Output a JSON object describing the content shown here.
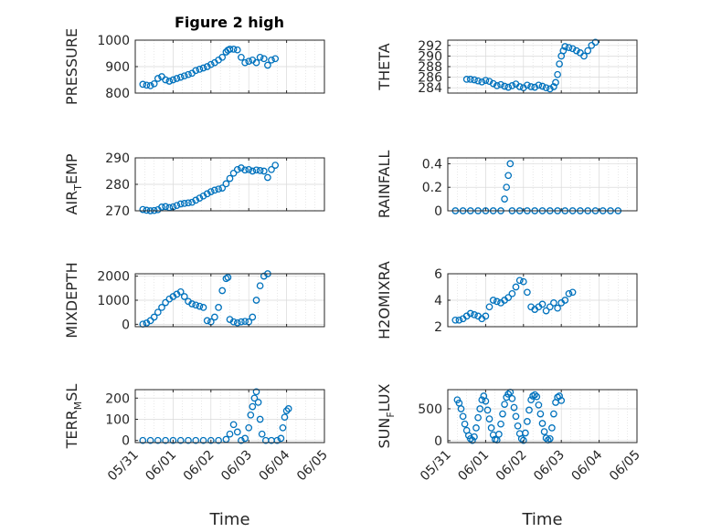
{
  "figure": {
    "title": "Figure 2 high",
    "marker_color": "#0072BD",
    "x_tick_labels": [
      "05/31",
      "06/01",
      "06/02",
      "06/03",
      "06/04",
      "06/05"
    ]
  },
  "chart_data": [
    {
      "type": "scatter",
      "ylabel": "PRESSURE",
      "ylabel_main": "PRESSURE",
      "ylabel_sub": "",
      "ylim": [
        800,
        1000
      ],
      "yticks": [
        800,
        900,
        1000
      ],
      "xlim": [
        0,
        5
      ],
      "xlabel": "",
      "points": [
        [
          0.2,
          833
        ],
        [
          0.3,
          830
        ],
        [
          0.4,
          828
        ],
        [
          0.5,
          835
        ],
        [
          0.6,
          855
        ],
        [
          0.7,
          862
        ],
        [
          0.8,
          850
        ],
        [
          0.9,
          845
        ],
        [
          1.0,
          850
        ],
        [
          1.1,
          855
        ],
        [
          1.2,
          860
        ],
        [
          1.3,
          865
        ],
        [
          1.4,
          870
        ],
        [
          1.5,
          875
        ],
        [
          1.6,
          885
        ],
        [
          1.7,
          890
        ],
        [
          1.8,
          895
        ],
        [
          1.9,
          900
        ],
        [
          2.0,
          908
        ],
        [
          2.1,
          915
        ],
        [
          2.2,
          925
        ],
        [
          2.3,
          935
        ],
        [
          2.4,
          955
        ],
        [
          2.45,
          962
        ],
        [
          2.5,
          966
        ],
        [
          2.6,
          966
        ],
        [
          2.7,
          963
        ],
        [
          2.8,
          935
        ],
        [
          2.9,
          915
        ],
        [
          3.0,
          920
        ],
        [
          3.1,
          925
        ],
        [
          3.2,
          915
        ],
        [
          3.3,
          935
        ],
        [
          3.4,
          930
        ],
        [
          3.5,
          905
        ],
        [
          3.6,
          925
        ],
        [
          3.7,
          930
        ]
      ]
    },
    {
      "type": "scatter",
      "ylabel": "THETA",
      "ylabel_main": "THETA",
      "ylabel_sub": "",
      "ylim": [
        283,
        293
      ],
      "yticks": [
        284,
        286,
        288,
        290,
        292
      ],
      "xlim": [
        0,
        5
      ],
      "xlabel": "",
      "points": [
        [
          0.5,
          285.6
        ],
        [
          0.6,
          285.6
        ],
        [
          0.7,
          285.5
        ],
        [
          0.8,
          285.3
        ],
        [
          0.9,
          285.1
        ],
        [
          1.0,
          285.4
        ],
        [
          1.1,
          285.2
        ],
        [
          1.2,
          284.8
        ],
        [
          1.3,
          284.4
        ],
        [
          1.4,
          284.6
        ],
        [
          1.5,
          284.3
        ],
        [
          1.6,
          284.1
        ],
        [
          1.7,
          284.4
        ],
        [
          1.8,
          284.7
        ],
        [
          1.9,
          284.2
        ],
        [
          2.0,
          284.0
        ],
        [
          2.1,
          284.5
        ],
        [
          2.2,
          284.2
        ],
        [
          2.3,
          284.1
        ],
        [
          2.4,
          284.5
        ],
        [
          2.5,
          284.3
        ],
        [
          2.6,
          284.0
        ],
        [
          2.7,
          283.8
        ],
        [
          2.8,
          284.2
        ],
        [
          2.85,
          285.0
        ],
        [
          2.9,
          286.5
        ],
        [
          2.95,
          288.5
        ],
        [
          3.0,
          290.0
        ],
        [
          3.05,
          291.0
        ],
        [
          3.1,
          291.8
        ],
        [
          3.2,
          291.6
        ],
        [
          3.3,
          291.4
        ],
        [
          3.4,
          291.0
        ],
        [
          3.5,
          290.6
        ],
        [
          3.6,
          290.0
        ],
        [
          3.7,
          291.0
        ],
        [
          3.8,
          292.0
        ],
        [
          3.9,
          292.6
        ]
      ]
    },
    {
      "type": "scatter",
      "ylabel": "AIR_TEMP",
      "ylabel_main": "AIR",
      "ylabel_sub": "T",
      "ylabel_tail": "EMP",
      "ylim": [
        270,
        290
      ],
      "yticks": [
        270,
        280,
        290
      ],
      "xlim": [
        0,
        5
      ],
      "xlabel": "",
      "points": [
        [
          0.2,
          270.5
        ],
        [
          0.3,
          270.2
        ],
        [
          0.4,
          270.0
        ],
        [
          0.5,
          270.1
        ],
        [
          0.6,
          270.4
        ],
        [
          0.7,
          271.4
        ],
        [
          0.8,
          271.6
        ],
        [
          0.9,
          271.2
        ],
        [
          1.0,
          271.5
        ],
        [
          1.1,
          272.0
        ],
        [
          1.2,
          272.6
        ],
        [
          1.3,
          272.8
        ],
        [
          1.4,
          273.0
        ],
        [
          1.5,
          273.2
        ],
        [
          1.6,
          274.0
        ],
        [
          1.7,
          274.8
        ],
        [
          1.8,
          275.6
        ],
        [
          1.9,
          276.4
        ],
        [
          2.0,
          277.2
        ],
        [
          2.1,
          277.8
        ],
        [
          2.2,
          278.2
        ],
        [
          2.3,
          278.6
        ],
        [
          2.4,
          280.2
        ],
        [
          2.5,
          282.2
        ],
        [
          2.6,
          284.2
        ],
        [
          2.7,
          285.6
        ],
        [
          2.8,
          286.2
        ],
        [
          2.9,
          285.4
        ],
        [
          3.0,
          285.6
        ],
        [
          3.1,
          285.0
        ],
        [
          3.2,
          285.4
        ],
        [
          3.3,
          285.2
        ],
        [
          3.4,
          285.0
        ],
        [
          3.5,
          282.6
        ],
        [
          3.6,
          285.6
        ],
        [
          3.7,
          287.2
        ]
      ]
    },
    {
      "type": "scatter",
      "ylabel": "RAINFALL",
      "ylabel_main": "RAINFALL",
      "ylabel_sub": "",
      "ylim": [
        0,
        0.45
      ],
      "yticks": [
        0,
        0.2,
        0.4
      ],
      "ytick_labels": [
        "0",
        "0.2",
        "0.4"
      ],
      "xlim": [
        0,
        5
      ],
      "xlabel": "",
      "points": [
        [
          0.2,
          0
        ],
        [
          0.4,
          0
        ],
        [
          0.6,
          0
        ],
        [
          0.8,
          0
        ],
        [
          1.0,
          0
        ],
        [
          1.2,
          0
        ],
        [
          1.4,
          0
        ],
        [
          1.5,
          0.1
        ],
        [
          1.55,
          0.2
        ],
        [
          1.6,
          0.3
        ],
        [
          1.65,
          0.4
        ],
        [
          1.7,
          0
        ],
        [
          1.9,
          0
        ],
        [
          2.1,
          0
        ],
        [
          2.3,
          0
        ],
        [
          2.5,
          0
        ],
        [
          2.7,
          0
        ],
        [
          2.9,
          0
        ],
        [
          3.1,
          0
        ],
        [
          3.3,
          0
        ],
        [
          3.5,
          0
        ],
        [
          3.7,
          0
        ],
        [
          3.9,
          0
        ],
        [
          4.1,
          0
        ],
        [
          4.3,
          0
        ],
        [
          4.5,
          0
        ]
      ]
    },
    {
      "type": "scatter",
      "ylabel": "MIXDEPTH",
      "ylabel_main": "MIXDEPTH",
      "ylabel_sub": "",
      "ylim": [
        -100,
        2100
      ],
      "yticks": [
        0,
        1000,
        2000
      ],
      "xlim": [
        0,
        5
      ],
      "xlabel": "",
      "points": [
        [
          0.2,
          5
        ],
        [
          0.3,
          50
        ],
        [
          0.4,
          150
        ],
        [
          0.5,
          300
        ],
        [
          0.6,
          500
        ],
        [
          0.7,
          700
        ],
        [
          0.8,
          900
        ],
        [
          0.9,
          1050
        ],
        [
          1.0,
          1150
        ],
        [
          1.1,
          1250
        ],
        [
          1.2,
          1350
        ],
        [
          1.3,
          1150
        ],
        [
          1.4,
          950
        ],
        [
          1.5,
          850
        ],
        [
          1.6,
          800
        ],
        [
          1.7,
          750
        ],
        [
          1.8,
          700
        ],
        [
          1.9,
          150
        ],
        [
          2.0,
          100
        ],
        [
          2.1,
          300
        ],
        [
          2.2,
          700
        ],
        [
          2.3,
          1400
        ],
        [
          2.4,
          1900
        ],
        [
          2.45,
          1950
        ],
        [
          2.5,
          200
        ],
        [
          2.6,
          100
        ],
        [
          2.7,
          60
        ],
        [
          2.8,
          100
        ],
        [
          2.9,
          120
        ],
        [
          3.0,
          100
        ],
        [
          3.1,
          300
        ],
        [
          3.2,
          1000
        ],
        [
          3.3,
          1600
        ],
        [
          3.4,
          2000
        ],
        [
          3.5,
          2100
        ]
      ]
    },
    {
      "type": "scatter",
      "ylabel": "H2OMIXRA",
      "ylabel_main": "H2OMIXRA",
      "ylabel_sub": "",
      "ylim": [
        2,
        6
      ],
      "yticks": [
        2,
        4,
        6
      ],
      "xlim": [
        0,
        5
      ],
      "xlabel": "",
      "points": [
        [
          0.2,
          2.5
        ],
        [
          0.3,
          2.5
        ],
        [
          0.4,
          2.6
        ],
        [
          0.5,
          2.8
        ],
        [
          0.6,
          3.0
        ],
        [
          0.7,
          2.9
        ],
        [
          0.8,
          2.8
        ],
        [
          0.9,
          2.6
        ],
        [
          1.0,
          2.8
        ],
        [
          1.1,
          3.5
        ],
        [
          1.2,
          4.0
        ],
        [
          1.3,
          3.9
        ],
        [
          1.4,
          3.8
        ],
        [
          1.5,
          4.0
        ],
        [
          1.6,
          4.2
        ],
        [
          1.7,
          4.5
        ],
        [
          1.8,
          5.0
        ],
        [
          1.9,
          5.5
        ],
        [
          2.0,
          5.4
        ],
        [
          2.1,
          4.6
        ],
        [
          2.2,
          3.5
        ],
        [
          2.3,
          3.3
        ],
        [
          2.4,
          3.5
        ],
        [
          2.5,
          3.7
        ],
        [
          2.6,
          3.2
        ],
        [
          2.7,
          3.5
        ],
        [
          2.8,
          3.8
        ],
        [
          2.9,
          3.4
        ],
        [
          3.0,
          3.8
        ],
        [
          3.1,
          4.0
        ],
        [
          3.2,
          4.5
        ],
        [
          3.3,
          4.6
        ]
      ]
    },
    {
      "type": "scatter",
      "ylabel": "TERR_MSL",
      "ylabel_main": "TERR",
      "ylabel_sub": "M",
      "ylabel_tail": "SL",
      "ylim": [
        -10,
        240
      ],
      "yticks": [
        0,
        100,
        200
      ],
      "xlim": [
        0,
        5
      ],
      "xlabel": "Time",
      "points": [
        [
          0.2,
          0
        ],
        [
          0.4,
          0
        ],
        [
          0.6,
          0
        ],
        [
          0.8,
          0
        ],
        [
          1.0,
          0
        ],
        [
          1.2,
          0
        ],
        [
          1.4,
          0
        ],
        [
          1.6,
          0
        ],
        [
          1.8,
          0
        ],
        [
          2.0,
          0
        ],
        [
          2.2,
          0
        ],
        [
          2.4,
          5
        ],
        [
          2.5,
          30
        ],
        [
          2.6,
          75
        ],
        [
          2.7,
          40
        ],
        [
          2.8,
          0
        ],
        [
          2.9,
          10
        ],
        [
          3.0,
          60
        ],
        [
          3.05,
          120
        ],
        [
          3.1,
          160
        ],
        [
          3.15,
          200
        ],
        [
          3.2,
          230
        ],
        [
          3.25,
          180
        ],
        [
          3.3,
          100
        ],
        [
          3.35,
          30
        ],
        [
          3.45,
          0
        ],
        [
          3.6,
          0
        ],
        [
          3.75,
          0
        ],
        [
          3.85,
          10
        ],
        [
          3.9,
          60
        ],
        [
          3.95,
          110
        ],
        [
          4.0,
          140
        ],
        [
          4.05,
          150
        ]
      ]
    },
    {
      "type": "scatter",
      "ylabel": "SUN_FLUX",
      "ylabel_main": "SUN",
      "ylabel_sub": "F",
      "ylabel_tail": "LUX",
      "ylim": [
        -30,
        800
      ],
      "yticks": [
        0,
        500
      ],
      "xlim": [
        0,
        5
      ],
      "xlabel": "Time",
      "points": [
        [
          0.25,
          640
        ],
        [
          0.3,
          590
        ],
        [
          0.35,
          500
        ],
        [
          0.4,
          380
        ],
        [
          0.45,
          260
        ],
        [
          0.5,
          160
        ],
        [
          0.55,
          80
        ],
        [
          0.6,
          30
        ],
        [
          0.65,
          5
        ],
        [
          0.7,
          60
        ],
        [
          0.75,
          200
        ],
        [
          0.8,
          360
        ],
        [
          0.85,
          500
        ],
        [
          0.9,
          640
        ],
        [
          0.95,
          700
        ],
        [
          1.0,
          620
        ],
        [
          1.05,
          480
        ],
        [
          1.1,
          340
        ],
        [
          1.15,
          200
        ],
        [
          1.2,
          90
        ],
        [
          1.25,
          20
        ],
        [
          1.3,
          10
        ],
        [
          1.35,
          100
        ],
        [
          1.4,
          260
        ],
        [
          1.45,
          420
        ],
        [
          1.5,
          570
        ],
        [
          1.55,
          680
        ],
        [
          1.6,
          730
        ],
        [
          1.65,
          760
        ],
        [
          1.7,
          660
        ],
        [
          1.75,
          520
        ],
        [
          1.8,
          380
        ],
        [
          1.85,
          230
        ],
        [
          1.9,
          110
        ],
        [
          1.95,
          30
        ],
        [
          2.0,
          5
        ],
        [
          2.05,
          120
        ],
        [
          2.1,
          300
        ],
        [
          2.15,
          480
        ],
        [
          2.2,
          640
        ],
        [
          2.25,
          700
        ],
        [
          2.3,
          720
        ],
        [
          2.35,
          690
        ],
        [
          2.4,
          560
        ],
        [
          2.45,
          420
        ],
        [
          2.5,
          270
        ],
        [
          2.55,
          140
        ],
        [
          2.6,
          40
        ],
        [
          2.65,
          10
        ],
        [
          2.7,
          30
        ],
        [
          2.75,
          200
        ],
        [
          2.8,
          420
        ],
        [
          2.85,
          600
        ],
        [
          2.9,
          680
        ],
        [
          2.95,
          700
        ],
        [
          3.0,
          630
        ]
      ]
    }
  ]
}
